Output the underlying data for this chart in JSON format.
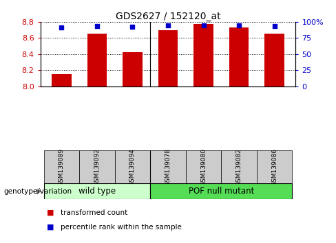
{
  "title": "GDS2627 / 152120_at",
  "samples": [
    "GSM139089",
    "GSM139092",
    "GSM139094",
    "GSM139078",
    "GSM139080",
    "GSM139082",
    "GSM139086"
  ],
  "red_values": [
    8.15,
    8.65,
    8.42,
    8.7,
    8.77,
    8.73,
    8.65
  ],
  "blue_values": [
    91,
    93,
    92,
    94,
    95,
    94,
    93
  ],
  "ylim_left": [
    8.0,
    8.8
  ],
  "ylim_right": [
    0,
    100
  ],
  "yticks_left": [
    8.0,
    8.2,
    8.4,
    8.6,
    8.8
  ],
  "yticks_right": [
    0,
    25,
    50,
    75,
    100
  ],
  "ytick_labels_right": [
    "0",
    "25",
    "50",
    "75",
    "100%"
  ],
  "wild_type_label": "wild type",
  "pof_label": "POF null mutant",
  "genotype_label": "genotype/variation",
  "legend_red": "transformed count",
  "legend_blue": "percentile rank within the sample",
  "bar_color": "#cc0000",
  "blue_color": "#0000cc",
  "wild_type_bg": "#ccffcc",
  "pof_bg": "#55dd55",
  "sample_bg": "#cccccc",
  "bar_width": 0.55
}
